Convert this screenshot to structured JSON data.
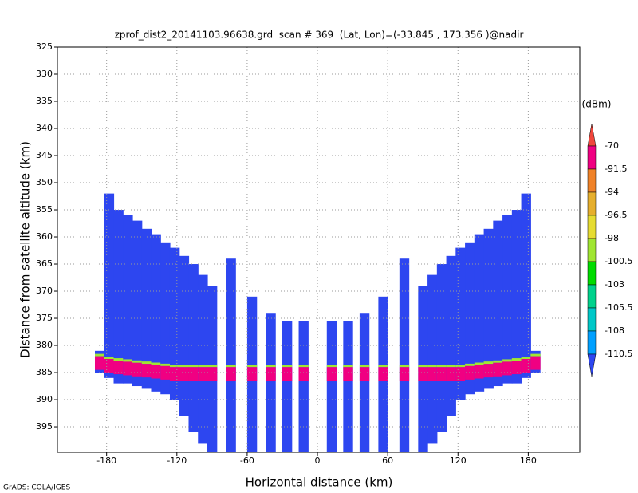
{
  "chart_data": {
    "type": "profile",
    "title": "zprof_dist2_20141103.96638.grd  scan # 369  (Lat, Lon)=(-33.845 , 173.356 )@nadir",
    "x_label": "Horizontal distance (km)",
    "y_label": "Distance from satellite altitude (km)",
    "credit": "GrADS: COLA/IGES",
    "xlim": [
      -222,
      224
    ],
    "xticks": [
      -180,
      -120,
      -60,
      0,
      60,
      120,
      180
    ],
    "ylim": [
      325,
      399.7
    ],
    "y_reversed": true,
    "yticks": [
      325,
      330,
      335,
      340,
      345,
      350,
      355,
      360,
      365,
      370,
      375,
      380,
      385,
      390,
      395
    ],
    "grid": true,
    "colorbar": {
      "unit": "(dBm)",
      "levels": [
        -70,
        -91.5,
        -94,
        -96.5,
        -98,
        -100.5,
        -103,
        -105.5,
        -108,
        -110.5
      ],
      "colors": [
        "#f0463c",
        "#f00082",
        "#f08228",
        "#e6af2d",
        "#e6dc32",
        "#a0e632",
        "#00dc00",
        "#00d28c",
        "#00c8c8",
        "#00a0ff",
        "#2d46f0"
      ]
    },
    "swath": {
      "width": 8,
      "x": [
        -186,
        -178,
        -170,
        -162,
        -154,
        -146,
        -138,
        -130,
        -122,
        -114,
        -106,
        -98,
        -90,
        -74,
        -56,
        -40,
        -26,
        -12,
        12,
        26,
        40,
        56,
        74,
        90,
        98,
        106,
        114,
        122,
        130,
        138,
        146,
        154,
        162,
        170,
        178,
        186
      ],
      "top": [
        381,
        352,
        355,
        356,
        357,
        358.5,
        359.5,
        361,
        362,
        363.5,
        365,
        367,
        369,
        364,
        371,
        374,
        375.5,
        375.5,
        375.5,
        375.5,
        374,
        371,
        364,
        369,
        367,
        365,
        363.5,
        362,
        361,
        359.5,
        358.5,
        357,
        356,
        355,
        352,
        381
      ],
      "bottom": [
        385,
        386,
        387,
        387,
        387.5,
        388,
        388.5,
        389,
        390,
        393,
        396,
        398,
        399.7,
        399.7,
        399.7,
        399.7,
        399.7,
        399.7,
        399.7,
        399.7,
        399.7,
        399.7,
        399.7,
        399.7,
        398,
        396,
        393,
        390,
        389,
        388.5,
        388,
        387.5,
        387,
        387,
        386,
        385
      ],
      "surface_top": [
        382,
        382.5,
        382.8,
        383,
        383.2,
        383.4,
        383.6,
        383.8,
        384,
        384,
        384,
        384,
        384,
        384,
        384,
        384,
        384,
        384,
        384,
        384,
        384,
        384,
        384,
        384,
        384,
        384,
        384,
        384,
        383.8,
        383.6,
        383.4,
        383.2,
        383,
        382.8,
        382.5,
        382
      ],
      "surface_bottom": [
        384.5,
        385,
        385.3,
        385.5,
        385.7,
        385.9,
        386.1,
        386.3,
        386.5,
        386.5,
        386.5,
        386.5,
        386.5,
        386.5,
        386.5,
        386.5,
        386.5,
        386.5,
        386.5,
        386.5,
        386.5,
        386.5,
        386.5,
        386.5,
        386.5,
        386.5,
        386.5,
        386.5,
        386.3,
        386.1,
        385.9,
        385.7,
        385.5,
        385.3,
        385,
        384.5
      ]
    }
  }
}
